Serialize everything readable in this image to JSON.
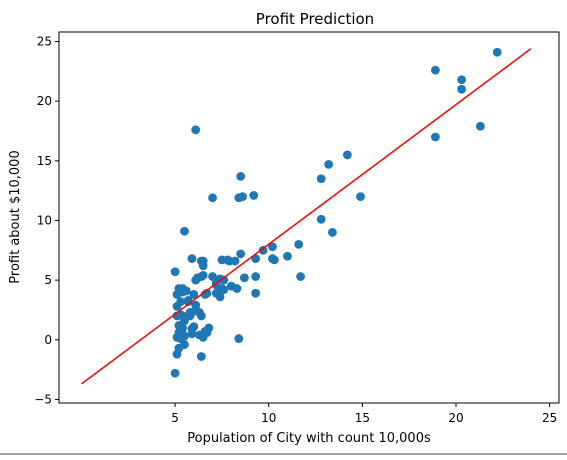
{
  "chart_data": {
    "type": "scatter",
    "title": "Profit Prediction",
    "xlabel": "Population of City with count 10,000s",
    "ylabel": "Profit about $10,000",
    "xlim": [
      -1.2,
      25.5
    ],
    "ylim": [
      -5.3,
      25.8
    ],
    "xticks": [
      5,
      10,
      15,
      20,
      25
    ],
    "yticks": [
      -5,
      0,
      5,
      10,
      15,
      20,
      25
    ],
    "grid": false,
    "colors": {
      "points": "#1f77b4",
      "line": "#ff0000"
    },
    "series": [
      {
        "type": "scatter",
        "points": [
          [
            6.1,
            17.6
          ],
          [
            5.5,
            9.1
          ],
          [
            8.5,
            13.7
          ],
          [
            7.0,
            11.9
          ],
          [
            5.9,
            6.8
          ],
          [
            8.4,
            11.9
          ],
          [
            7.5,
            4.3
          ],
          [
            8.6,
            12.0
          ],
          [
            6.5,
            6.6
          ],
          [
            5.1,
            3.8
          ],
          [
            5.7,
            3.3
          ],
          [
            14.2,
            15.5
          ],
          [
            5.7,
            3.2
          ],
          [
            6.4,
            5.3
          ],
          [
            5.2,
            0.6
          ],
          [
            5.4,
            4.3
          ],
          [
            6.4,
            6.6
          ],
          [
            5.1,
            0.2
          ],
          [
            5.5,
            0.3
          ],
          [
            6.2,
            5.2
          ],
          [
            5.9,
            2.3
          ],
          [
            12.8,
            13.5
          ],
          [
            5.3,
            2.1
          ],
          [
            20.3,
            21.8
          ],
          [
            5.4,
            1.0
          ],
          [
            6.7,
            3.9
          ],
          [
            6.1,
            5.0
          ],
          [
            6.0,
            3.8
          ],
          [
            5.8,
            2.3
          ],
          [
            6.6,
            0.7
          ],
          [
            6.4,
            2.0
          ],
          [
            5.6,
            4.1
          ],
          [
            6.5,
            6.2
          ],
          [
            9.2,
            12.1
          ],
          [
            5.5,
            -0.4
          ],
          [
            5.0,
            5.7
          ],
          [
            5.4,
            4.0
          ],
          [
            6.5,
            5.4
          ],
          [
            7.0,
            5.3
          ],
          [
            14.9,
            12.0
          ],
          [
            5.3,
            0.1
          ],
          [
            6.3,
            0.4
          ],
          [
            7.5,
            6.7
          ],
          [
            5.4,
            2.0
          ],
          [
            8.2,
            6.6
          ],
          [
            5.2,
            -0.7
          ],
          [
            21.3,
            17.9
          ],
          [
            5.0,
            -2.8
          ],
          [
            5.1,
            2.8
          ],
          [
            13.4,
            9.0
          ],
          [
            5.9,
            0.9
          ],
          [
            6.7,
            0.6
          ],
          [
            6.3,
            2.3
          ],
          [
            7.2,
            3.9
          ],
          [
            5.9,
            0.9
          ],
          [
            7.2,
            4.6
          ],
          [
            5.5,
            1.6
          ],
          [
            8.0,
            4.5
          ],
          [
            9.7,
            7.5
          ],
          [
            9.3,
            5.3
          ],
          [
            7.6,
            4.2
          ],
          [
            6.8,
            1.0
          ],
          [
            5.2,
            4.3
          ],
          [
            6.6,
            3.8
          ],
          [
            7.4,
            5.1
          ],
          [
            5.4,
            0.5
          ],
          [
            8.3,
            4.3
          ],
          [
            10.2,
            6.8
          ],
          [
            11.7,
            5.3
          ],
          [
            10.2,
            7.8
          ],
          [
            11.6,
            8.0
          ],
          [
            5.2,
            1.2
          ],
          [
            6.5,
            0.2
          ],
          [
            7.8,
            6.7
          ],
          [
            8.5,
            7.2
          ],
          [
            7.9,
            6.6
          ],
          [
            5.1,
            2.0
          ],
          [
            7.2,
            4.8
          ],
          [
            8.7,
            5.2
          ],
          [
            9.3,
            6.8
          ],
          [
            6.1,
            2.5
          ],
          [
            5.1,
            -1.2
          ],
          [
            7.6,
            5.0
          ],
          [
            6.4,
            -1.4
          ],
          [
            9.3,
            3.9
          ],
          [
            5.3,
            3.2
          ],
          [
            5.8,
            2.0
          ],
          [
            6.1,
            2.9
          ],
          [
            6.0,
            1.1
          ],
          [
            11.0,
            7.0
          ],
          [
            7.4,
            3.6
          ],
          [
            5.9,
            0.5
          ],
          [
            10.3,
            6.7
          ],
          [
            12.8,
            10.1
          ],
          [
            13.2,
            14.7
          ],
          [
            22.2,
            24.1
          ],
          [
            18.9,
            22.6
          ],
          [
            18.9,
            17.0
          ],
          [
            20.3,
            21.0
          ],
          [
            8.4,
            0.1
          ]
        ]
      },
      {
        "type": "line",
        "x": [
          0.0,
          24.0
        ],
        "y": [
          -3.7,
          24.4
        ]
      }
    ]
  }
}
